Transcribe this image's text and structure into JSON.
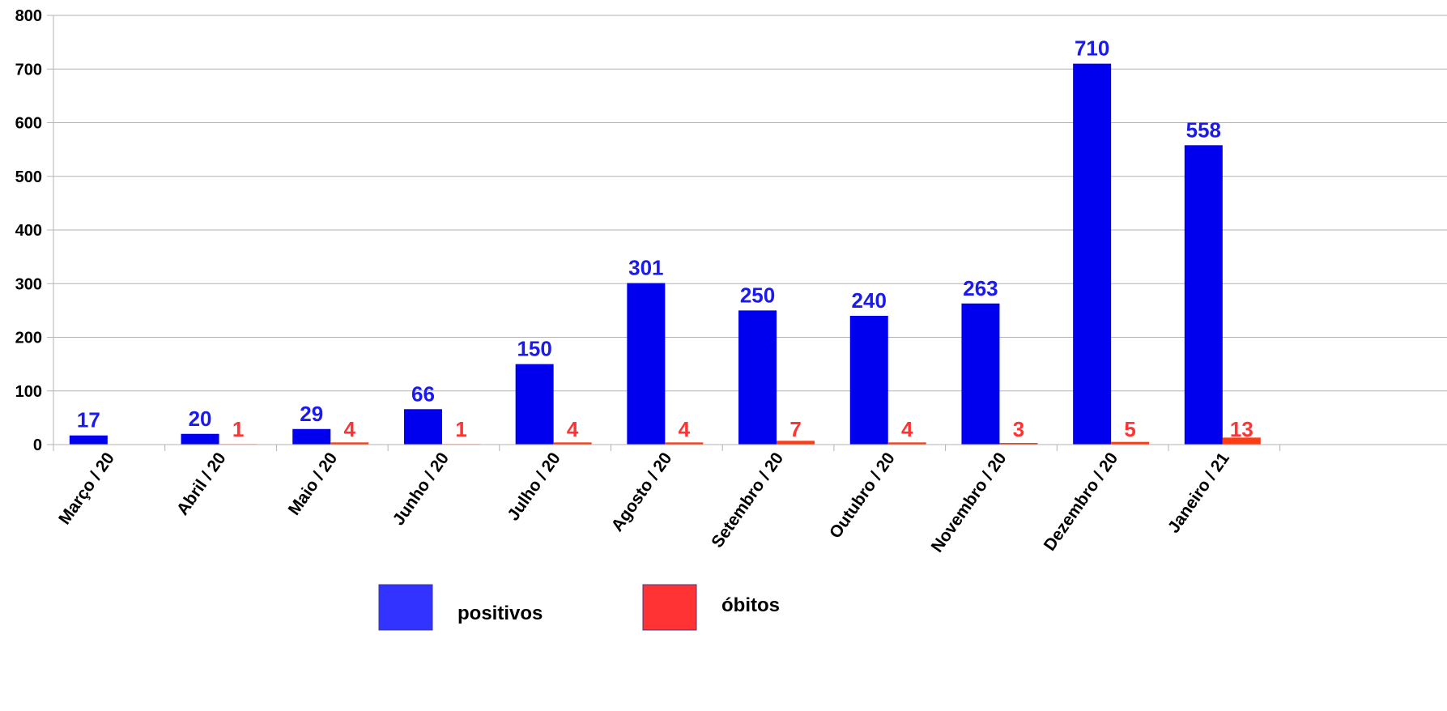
{
  "chart_data": {
    "type": "bar",
    "categories": [
      "Março / 20",
      "Abril / 20",
      "Maio / 20",
      "Junho / 20",
      "Julho / 20",
      "Agosto / 20",
      "Setembro / 20",
      "Outubro / 20",
      "Novembro / 20",
      "Dezembro / 20",
      "Janeiro / 21"
    ],
    "series": [
      {
        "name": "positivos",
        "color": "#0000ee",
        "label_color": "#1a1aee",
        "values": [
          17,
          20,
          29,
          66,
          150,
          301,
          250,
          240,
          263,
          710,
          558
        ],
        "labels": [
          "17",
          "20",
          "29",
          "66",
          "150",
          "301",
          "250",
          "240",
          "263",
          "710",
          "558"
        ]
      },
      {
        "name": "óbitos",
        "color": "#ff3b12",
        "label_color": "#ff3333",
        "values": [
          0,
          1,
          4,
          1,
          4,
          4,
          7,
          4,
          3,
          5,
          13
        ],
        "labels": [
          "",
          "1",
          "4",
          "1",
          "4",
          "4",
          "7",
          "4",
          "3",
          "5",
          "13"
        ]
      }
    ],
    "ylim": [
      0,
      800
    ],
    "yticks": [
      0,
      100,
      200,
      300,
      400,
      500,
      600,
      700,
      800
    ],
    "ytick_labels": [
      "0",
      "100",
      "200",
      "300",
      "400",
      "500",
      "600",
      "700",
      "800"
    ],
    "grid": true,
    "legend": {
      "placement": "bottom-center",
      "entries": [
        {
          "label": "positivos",
          "color": "#3333ff"
        },
        {
          "label": "óbitos",
          "color": "#ff3333"
        }
      ]
    },
    "title": "",
    "xlabel": "",
    "ylabel": ""
  }
}
